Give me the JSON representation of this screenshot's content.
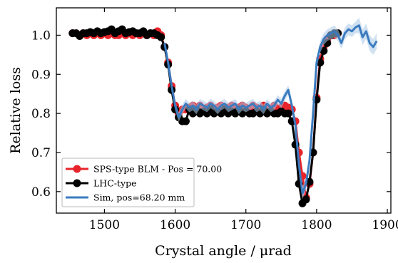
{
  "chart_data": {
    "type": "line",
    "xlabel": "Crystal angle / μrad",
    "ylabel": "Relative loss",
    "xlim": [
      1432,
      1905
    ],
    "ylim": [
      0.545,
      1.07
    ],
    "xticks": [
      1500,
      1600,
      1700,
      1800,
      1900
    ],
    "yticks": [
      0.6,
      0.7,
      0.8,
      0.9,
      1.0
    ],
    "xtick_labels": [
      "1500",
      "1600",
      "1700",
      "1800",
      "1900"
    ],
    "ytick_labels": [
      "0.6",
      "0.7",
      "0.8",
      "0.9",
      "1.0"
    ],
    "legend_position": "lower-left",
    "series": [
      {
        "name": "SPS-type BLM - Pos = 70.00",
        "style": "line-markers",
        "color": "#e8242b",
        "x": [
          1455,
          1465,
          1470,
          1475,
          1480,
          1485,
          1490,
          1495,
          1500,
          1505,
          1510,
          1515,
          1520,
          1525,
          1530,
          1535,
          1540,
          1545,
          1550,
          1555,
          1560,
          1565,
          1570,
          1575,
          1580,
          1585,
          1590,
          1595,
          1600,
          1605,
          1610,
          1615,
          1620,
          1625,
          1630,
          1635,
          1640,
          1645,
          1650,
          1655,
          1660,
          1665,
          1670,
          1675,
          1680,
          1685,
          1690,
          1695,
          1700,
          1705,
          1710,
          1715,
          1720,
          1725,
          1730,
          1735,
          1740,
          1745,
          1750,
          1755,
          1760,
          1765,
          1770,
          1775,
          1780,
          1785,
          1790,
          1795,
          1800,
          1805,
          1810,
          1815,
          1820,
          1825,
          1830
        ],
        "y": [
          1.005,
          1.0,
          1.005,
          1.0,
          1.005,
          1.0,
          1.005,
          1.0,
          1.005,
          1.0,
          1.005,
          1.0,
          1.0,
          1.005,
          1.0,
          1.005,
          1.0,
          1.005,
          1.0,
          1.005,
          1.0,
          1.005,
          1.0,
          1.01,
          1.0,
          0.97,
          0.93,
          0.87,
          0.82,
          0.8,
          0.81,
          0.81,
          0.815,
          0.82,
          0.81,
          0.82,
          0.81,
          0.815,
          0.82,
          0.81,
          0.815,
          0.82,
          0.81,
          0.815,
          0.82,
          0.81,
          0.815,
          0.82,
          0.815,
          0.81,
          0.82,
          0.815,
          0.81,
          0.82,
          0.815,
          0.81,
          0.82,
          0.81,
          0.815,
          0.82,
          0.815,
          0.81,
          0.78,
          0.7,
          0.64,
          0.585,
          0.62,
          0.7,
          0.84,
          0.94,
          0.97,
          0.99,
          1.0,
          1.0,
          1.005
        ]
      },
      {
        "name": "LHC-type",
        "style": "line-markers",
        "color": "#000000",
        "x": [
          1455,
          1460,
          1465,
          1470,
          1475,
          1480,
          1485,
          1490,
          1495,
          1500,
          1505,
          1510,
          1515,
          1520,
          1525,
          1530,
          1535,
          1540,
          1545,
          1550,
          1555,
          1560,
          1565,
          1570,
          1575,
          1580,
          1585,
          1590,
          1595,
          1600,
          1605,
          1610,
          1615,
          1620,
          1625,
          1630,
          1635,
          1640,
          1645,
          1650,
          1655,
          1660,
          1665,
          1670,
          1675,
          1680,
          1685,
          1690,
          1695,
          1700,
          1705,
          1710,
          1715,
          1720,
          1725,
          1730,
          1735,
          1740,
          1745,
          1750,
          1755,
          1760,
          1765,
          1770,
          1775,
          1780,
          1785,
          1790,
          1795,
          1800,
          1805,
          1810,
          1815,
          1820,
          1825,
          1830
        ],
        "y": [
          1.005,
          1.005,
          0.998,
          1.005,
          1.005,
          1.008,
          1.005,
          1.01,
          1.005,
          1.008,
          1.01,
          1.015,
          1.005,
          1.01,
          1.015,
          1.005,
          1.008,
          1.01,
          1.005,
          1.005,
          1.01,
          1.0,
          1.005,
          1.005,
          1.0,
          0.995,
          0.97,
          0.925,
          0.86,
          0.81,
          0.79,
          0.78,
          0.78,
          0.81,
          0.8,
          0.81,
          0.8,
          0.805,
          0.8,
          0.81,
          0.8,
          0.805,
          0.8,
          0.81,
          0.8,
          0.805,
          0.8,
          0.81,
          0.8,
          0.805,
          0.8,
          0.8,
          0.805,
          0.8,
          0.81,
          0.8,
          0.805,
          0.8,
          0.8,
          0.805,
          0.8,
          0.8,
          0.78,
          0.72,
          0.62,
          0.57,
          0.58,
          0.625,
          0.7,
          0.835,
          0.93,
          0.96,
          0.98,
          1.0,
          1.005,
          1.005
        ]
      },
      {
        "name": "Sim, pos=68.20 mm",
        "style": "line-band",
        "color": "#3b7bbf",
        "band_color": "#a9c8e8",
        "x": [
          1585,
          1590,
          1595,
          1600,
          1605,
          1610,
          1615,
          1620,
          1625,
          1630,
          1635,
          1640,
          1645,
          1650,
          1655,
          1660,
          1665,
          1670,
          1675,
          1680,
          1685,
          1690,
          1695,
          1700,
          1705,
          1710,
          1715,
          1720,
          1725,
          1730,
          1735,
          1740,
          1745,
          1750,
          1755,
          1760,
          1765,
          1770,
          1775,
          1780,
          1785,
          1790,
          1795,
          1800,
          1805,
          1810,
          1815,
          1820,
          1825,
          1830,
          1835,
          1840,
          1845,
          1850,
          1855,
          1860,
          1865,
          1870,
          1875,
          1880,
          1885
        ],
        "y": [
          0.98,
          0.93,
          0.87,
          0.82,
          0.79,
          0.81,
          0.825,
          0.815,
          0.82,
          0.81,
          0.825,
          0.82,
          0.815,
          0.825,
          0.82,
          0.81,
          0.82,
          0.825,
          0.815,
          0.82,
          0.825,
          0.81,
          0.82,
          0.815,
          0.82,
          0.825,
          0.815,
          0.82,
          0.81,
          0.825,
          0.815,
          0.82,
          0.835,
          0.825,
          0.845,
          0.86,
          0.82,
          0.77,
          0.67,
          0.595,
          0.62,
          0.68,
          0.8,
          0.93,
          0.97,
          0.99,
          1.0,
          1.005,
          1.01,
          1.0,
          0.98,
          1.005,
          1.015,
          1.01,
          1.02,
          1.025,
          0.995,
          1.01,
          0.98,
          0.97,
          0.985
        ],
        "err": [
          0.01,
          0.01,
          0.01,
          0.012,
          0.012,
          0.012,
          0.012,
          0.012,
          0.012,
          0.012,
          0.012,
          0.012,
          0.012,
          0.012,
          0.012,
          0.012,
          0.012,
          0.012,
          0.012,
          0.012,
          0.012,
          0.012,
          0.012,
          0.012,
          0.012,
          0.012,
          0.012,
          0.012,
          0.012,
          0.012,
          0.012,
          0.012,
          0.012,
          0.012,
          0.012,
          0.012,
          0.012,
          0.012,
          0.015,
          0.015,
          0.015,
          0.015,
          0.015,
          0.015,
          0.015,
          0.015,
          0.015,
          0.015,
          0.015,
          0.015,
          0.015,
          0.015,
          0.015,
          0.015,
          0.015,
          0.02,
          0.02,
          0.02,
          0.02,
          0.02,
          0.02
        ]
      }
    ]
  }
}
